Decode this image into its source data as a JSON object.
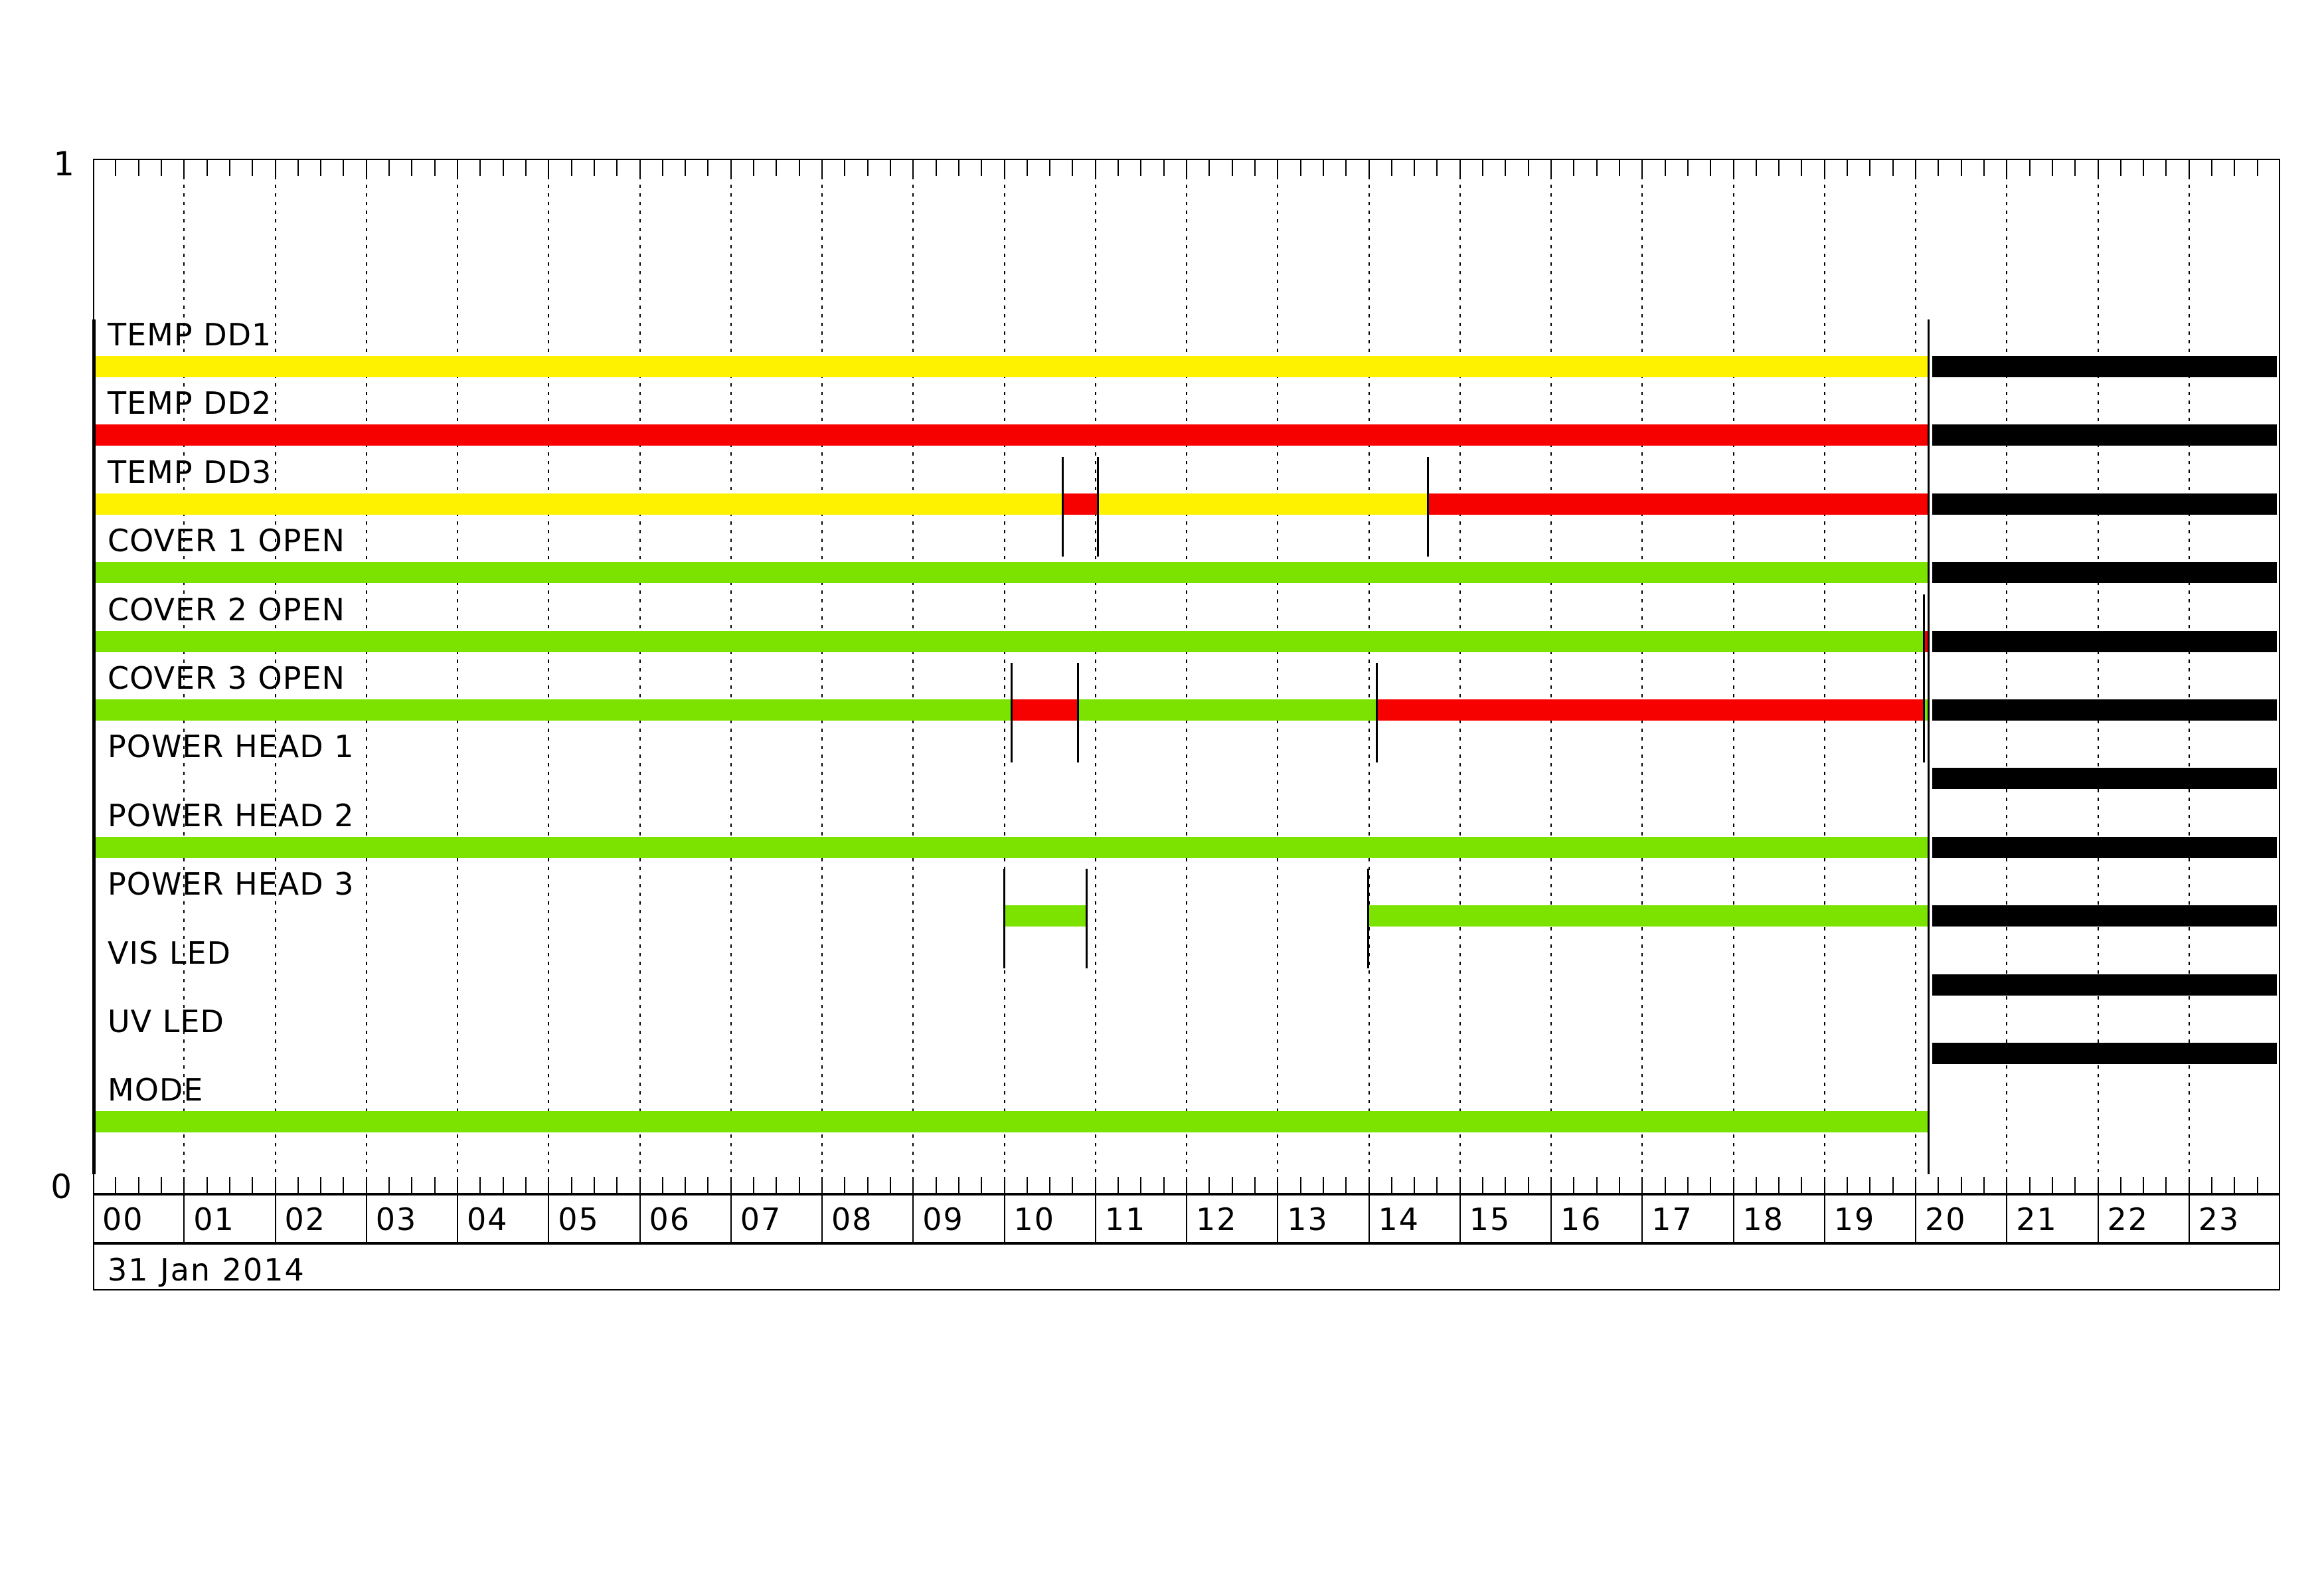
{
  "date_label": "31 Jan 2014",
  "y_axis": {
    "top_tick_label": "1",
    "bottom_tick_label": "0"
  },
  "colors": {
    "yellow": "#fff200",
    "red": "#f70000",
    "green": "#7ce300",
    "no_data_black": "#000000",
    "grid": "#000000",
    "marker": "#000000",
    "background": "#ffffff"
  },
  "chart_data": {
    "type": "bar",
    "subtype": "status-timeline (gantt of instrument channel states vs time of day)",
    "title": "",
    "date": "31 Jan 2014",
    "x_range_hours": [
      0,
      24
    ],
    "x_ticklabels": [
      "00",
      "01",
      "02",
      "03",
      "04",
      "05",
      "06",
      "07",
      "08",
      "09",
      "10",
      "11",
      "12",
      "13",
      "14",
      "15",
      "16",
      "17",
      "18",
      "19",
      "20",
      "21",
      "22",
      "23"
    ],
    "x_minor_tick_minutes": 15,
    "y_ticklabels": [
      "1",
      "0"
    ],
    "grid": "dotted vertical line at every hour",
    "legend_position": "none",
    "data_end_hour": 20.14,
    "no_data_interval_hours": [
      20.18,
      23.96
    ],
    "rows": [
      {
        "label": "TEMP DD1",
        "segments": [
          {
            "start": 0,
            "end": 20.14,
            "color": "yellow"
          }
        ],
        "no_data": true,
        "markers": [
          0,
          20.14
        ]
      },
      {
        "label": "TEMP DD2",
        "segments": [
          {
            "start": 0,
            "end": 20.14,
            "color": "red"
          }
        ],
        "no_data": true,
        "markers": [
          0,
          20.14
        ]
      },
      {
        "label": "TEMP DD3",
        "segments": [
          {
            "start": 0,
            "end": 10.64,
            "color": "yellow"
          },
          {
            "start": 10.64,
            "end": 11.03,
            "color": "red"
          },
          {
            "start": 11.03,
            "end": 14.65,
            "color": "yellow"
          },
          {
            "start": 14.65,
            "end": 20.14,
            "color": "red"
          }
        ],
        "no_data": true,
        "markers": [
          0,
          10.64,
          11.03,
          14.65,
          20.14
        ]
      },
      {
        "label": "COVER 1 OPEN",
        "segments": [
          {
            "start": 0,
            "end": 20.14,
            "color": "green"
          }
        ],
        "no_data": true,
        "markers": [
          0,
          20.14
        ]
      },
      {
        "label": "COVER 2 OPEN",
        "segments": [
          {
            "start": 0,
            "end": 20.09,
            "color": "green"
          },
          {
            "start": 20.09,
            "end": 20.14,
            "color": "red"
          }
        ],
        "no_data": true,
        "markers": [
          0,
          20.09,
          20.14
        ]
      },
      {
        "label": "COVER 3 OPEN",
        "segments": [
          {
            "start": 0,
            "end": 10.08,
            "color": "green"
          },
          {
            "start": 10.08,
            "end": 10.81,
            "color": "red"
          },
          {
            "start": 10.81,
            "end": 14.09,
            "color": "green"
          },
          {
            "start": 14.09,
            "end": 20.09,
            "color": "red"
          },
          {
            "start": 20.09,
            "end": 20.14,
            "color": "green"
          }
        ],
        "no_data": true,
        "markers": [
          0,
          10.08,
          10.81,
          14.09,
          20.09,
          20.14
        ]
      },
      {
        "label": "POWER HEAD 1",
        "segments": [],
        "no_data": true,
        "markers": [
          0,
          20.14
        ]
      },
      {
        "label": "POWER HEAD 2",
        "segments": [
          {
            "start": 0,
            "end": 20.14,
            "color": "green"
          }
        ],
        "no_data": true,
        "markers": [
          0,
          20.14
        ]
      },
      {
        "label": "POWER HEAD 3",
        "segments": [
          {
            "start": 10.0,
            "end": 10.9,
            "color": "green"
          },
          {
            "start": 13.99,
            "end": 20.14,
            "color": "green"
          }
        ],
        "no_data": true,
        "markers": [
          0,
          10.0,
          10.9,
          13.99,
          20.14
        ]
      },
      {
        "label": "VIS LED",
        "segments": [],
        "no_data": true,
        "markers": [
          0,
          20.14
        ]
      },
      {
        "label": "UV LED",
        "segments": [],
        "no_data": true,
        "markers": [
          0,
          20.14
        ]
      },
      {
        "label": "MODE",
        "segments": [
          {
            "start": 0,
            "end": 20.14,
            "color": "green"
          }
        ],
        "no_data": false,
        "markers": [
          0,
          20.14
        ]
      }
    ]
  }
}
